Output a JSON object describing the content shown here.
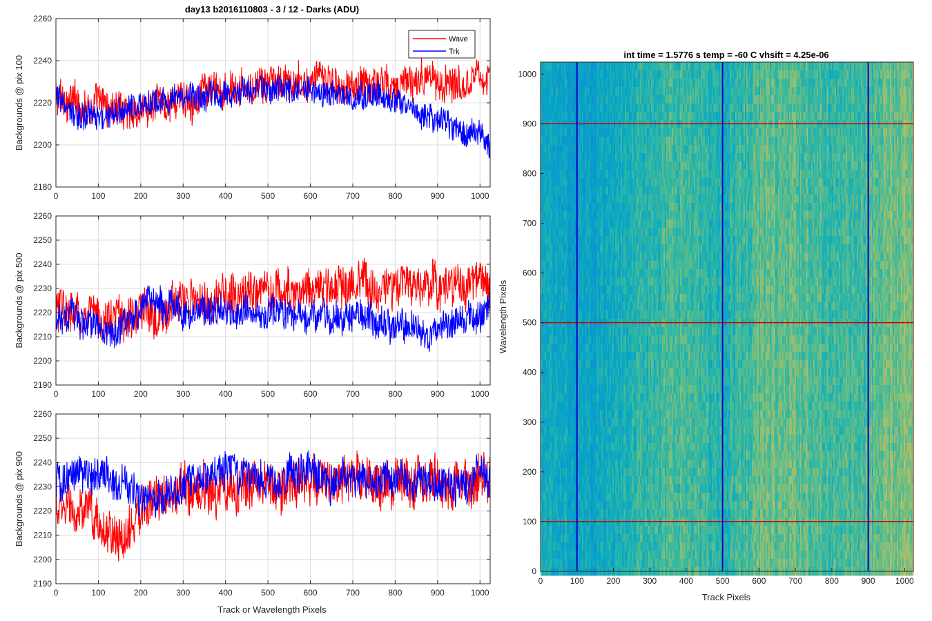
{
  "figure": {
    "line_plots_title": "day13 b2016110803 - 3 / 12 - Darks (ADU)",
    "shared_xlabel": "Track or Wavelength Pixels"
  },
  "colors": {
    "wave": "#ff0000",
    "trk": "#0000ff",
    "grid": "#dcdcdc",
    "axis": "#262626"
  },
  "chart_data": [
    {
      "type": "line",
      "ylabel": "Backgrounds @ pix 100",
      "xlim": [
        0,
        1024
      ],
      "ylim": [
        2180,
        2260
      ],
      "xticks": [
        0,
        100,
        200,
        300,
        400,
        500,
        600,
        700,
        800,
        900,
        1000
      ],
      "yticks": [
        2180,
        2200,
        2220,
        2240,
        2260
      ],
      "grid": true,
      "legend": {
        "placement": "top-right",
        "entries": [
          "Wave",
          "Trk"
        ]
      },
      "series": [
        {
          "name": "Wave",
          "color": "#ff0000",
          "trend": [
            [
              0,
              2222
            ],
            [
              100,
              2218
            ],
            [
              200,
              2216
            ],
            [
              300,
              2222
            ],
            [
              400,
              2225
            ],
            [
              500,
              2228
            ],
            [
              600,
              2230
            ],
            [
              700,
              2228
            ],
            [
              800,
              2230
            ],
            [
              900,
              2230
            ],
            [
              1024,
              2233
            ]
          ],
          "noise_amplitude": 8
        },
        {
          "name": "Trk",
          "color": "#0000ff",
          "trend": [
            [
              0,
              2222
            ],
            [
              60,
              2212
            ],
            [
              150,
              2215
            ],
            [
              250,
              2222
            ],
            [
              400,
              2224
            ],
            [
              500,
              2226
            ],
            [
              600,
              2226
            ],
            [
              700,
              2223
            ],
            [
              800,
              2222
            ],
            [
              900,
              2213
            ],
            [
              1000,
              2205
            ],
            [
              1024,
              2198
            ]
          ],
          "noise_amplitude": 6
        }
      ]
    },
    {
      "type": "line",
      "ylabel": "Backgrounds @ pix 500",
      "xlim": [
        0,
        1024
      ],
      "ylim": [
        2190,
        2260
      ],
      "xticks": [
        0,
        100,
        200,
        300,
        400,
        500,
        600,
        700,
        800,
        900,
        1000
      ],
      "yticks": [
        2190,
        2200,
        2210,
        2220,
        2230,
        2240,
        2250,
        2260
      ],
      "grid": true,
      "series": [
        {
          "name": "Wave",
          "color": "#ff0000",
          "trend": [
            [
              0,
              2220
            ],
            [
              150,
              2217
            ],
            [
              300,
              2224
            ],
            [
              450,
              2228
            ],
            [
              600,
              2230
            ],
            [
              800,
              2230
            ],
            [
              1000,
              2232
            ],
            [
              1024,
              2230
            ]
          ],
          "noise_amplitude": 8
        },
        {
          "name": "Trk",
          "color": "#0000ff",
          "trend": [
            [
              0,
              2220
            ],
            [
              80,
              2215
            ],
            [
              150,
              2212
            ],
            [
              220,
              2226
            ],
            [
              300,
              2220
            ],
            [
              500,
              2220
            ],
            [
              700,
              2218
            ],
            [
              900,
              2213
            ],
            [
              1024,
              2222
            ]
          ],
          "noise_amplitude": 6
        }
      ]
    },
    {
      "type": "line",
      "ylabel": "Backgrounds @ pix 900",
      "xlim": [
        0,
        1024
      ],
      "ylim": [
        2190,
        2260
      ],
      "xticks": [
        0,
        100,
        200,
        300,
        400,
        500,
        600,
        700,
        800,
        900,
        1000
      ],
      "yticks": [
        2190,
        2200,
        2210,
        2220,
        2230,
        2240,
        2250,
        2260
      ],
      "grid": true,
      "series": [
        {
          "name": "Wave",
          "color": "#ff0000",
          "trend": [
            [
              0,
              2222
            ],
            [
              100,
              2215
            ],
            [
              150,
              2208
            ],
            [
              220,
              2222
            ],
            [
              300,
              2228
            ],
            [
              400,
              2230
            ],
            [
              600,
              2232
            ],
            [
              800,
              2232
            ],
            [
              1024,
              2232
            ]
          ],
          "noise_amplitude": 9
        },
        {
          "name": "Trk",
          "color": "#0000ff",
          "trend": [
            [
              0,
              2232
            ],
            [
              100,
              2236
            ],
            [
              200,
              2226
            ],
            [
              300,
              2230
            ],
            [
              400,
              2238
            ],
            [
              500,
              2232
            ],
            [
              600,
              2235
            ],
            [
              700,
              2232
            ],
            [
              800,
              2234
            ],
            [
              900,
              2232
            ],
            [
              1024,
              2232
            ]
          ],
          "noise_amplitude": 7
        }
      ]
    },
    {
      "type": "heatmap",
      "title": "int time = 1.5776 s    temp = -60 C    vhsift = 4.25e-06",
      "xlabel": "Track Pixels",
      "ylabel": "Wavelength Pixels",
      "xlim": [
        0,
        1024
      ],
      "ylim": [
        0,
        1024
      ],
      "xticks": [
        0,
        100,
        200,
        300,
        400,
        500,
        600,
        700,
        800,
        900,
        1000
      ],
      "yticks": [
        0,
        100,
        200,
        300,
        400,
        500,
        600,
        700,
        800,
        900,
        1000
      ],
      "colormap": "parula",
      "column_level_profile": [
        [
          0,
          0.48
        ],
        [
          100,
          0.44
        ],
        [
          200,
          0.47
        ],
        [
          300,
          0.55
        ],
        [
          400,
          0.57
        ],
        [
          500,
          0.52
        ],
        [
          600,
          0.6
        ],
        [
          700,
          0.6
        ],
        [
          800,
          0.56
        ],
        [
          900,
          0.58
        ],
        [
          1024,
          0.66
        ]
      ],
      "vertical_markers": [
        100,
        500,
        900
      ],
      "vertical_marker_color": "#0000cc",
      "horizontal_markers": [
        100,
        500,
        900
      ],
      "horizontal_marker_color": "#cc0000"
    }
  ]
}
